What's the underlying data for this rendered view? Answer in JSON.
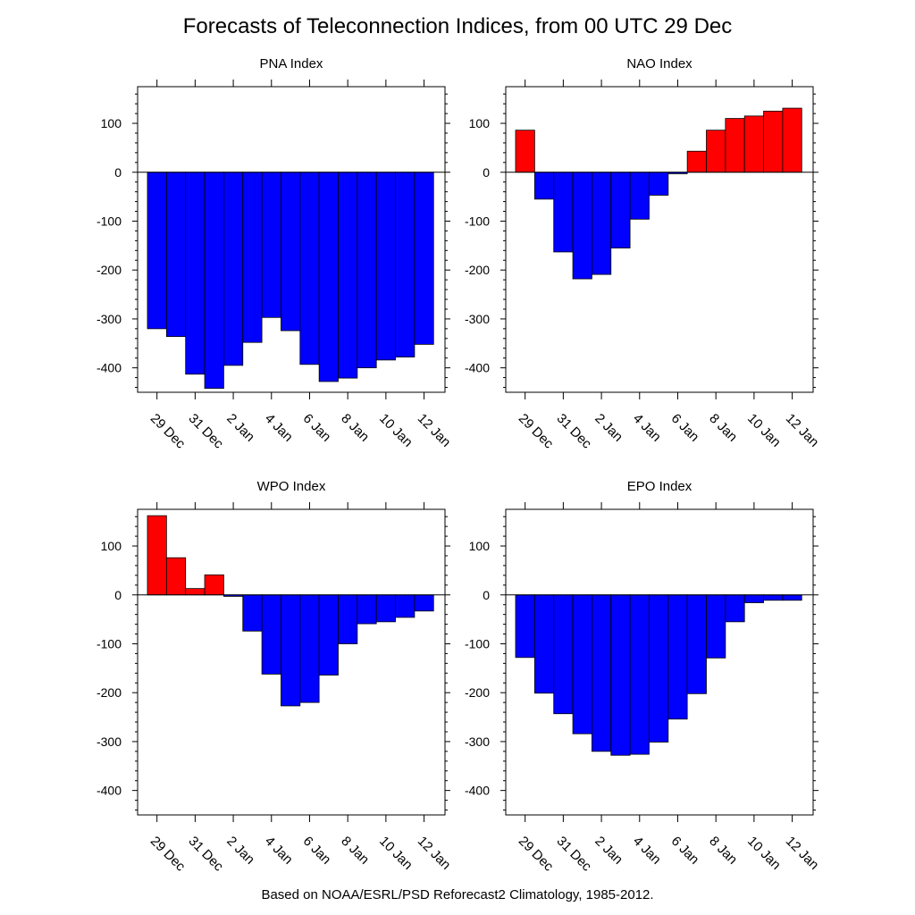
{
  "title": "Forecasts of Teleconnection Indices, from 00 UTC 29 Dec",
  "footer": "Based on NOAA/ESRL/PSD Reforecast2 Climatology, 1985-2012.",
  "colors": {
    "positive": "#ff0000",
    "negative": "#0000ff",
    "outline": "#000000"
  },
  "chart_data": [
    {
      "type": "bar",
      "title": "PNA Index",
      "categories": [
        "29 Dec",
        "30 Dec",
        "31 Dec",
        "1 Jan",
        "2 Jan",
        "3 Jan",
        "4 Jan",
        "5 Jan",
        "6 Jan",
        "7 Jan",
        "8 Jan",
        "9 Jan",
        "10 Jan",
        "11 Jan",
        "12 Jan"
      ],
      "tick_labels": [
        "29 Dec",
        "31 Dec",
        "2 Jan",
        "4 Jan",
        "6 Jan",
        "8 Jan",
        "10 Jan",
        "12 Jan"
      ],
      "values": [
        -320,
        -336,
        -413,
        -442,
        -395,
        -348,
        -297,
        -324,
        -393,
        -428,
        -421,
        -400,
        -384,
        -378,
        -352
      ],
      "ylim": [
        -450,
        175
      ],
      "yticks": [
        100,
        0,
        -100,
        -200,
        -300,
        -400
      ]
    },
    {
      "type": "bar",
      "title": "NAO Index",
      "categories": [
        "29 Dec",
        "30 Dec",
        "31 Dec",
        "1 Jan",
        "2 Jan",
        "3 Jan",
        "4 Jan",
        "5 Jan",
        "6 Jan",
        "7 Jan",
        "8 Jan",
        "9 Jan",
        "10 Jan",
        "11 Jan",
        "12 Jan"
      ],
      "tick_labels": [
        "29 Dec",
        "31 Dec",
        "2 Jan",
        "4 Jan",
        "6 Jan",
        "8 Jan",
        "10 Jan",
        "12 Jan"
      ],
      "values": [
        86,
        -55,
        -163,
        -218,
        -209,
        -155,
        -96,
        -47,
        -3,
        43,
        86,
        110,
        115,
        125,
        131
      ],
      "ylim": [
        -450,
        175
      ],
      "yticks": [
        100,
        0,
        -100,
        -200,
        -300,
        -400
      ]
    },
    {
      "type": "bar",
      "title": "WPO Index",
      "categories": [
        "29 Dec",
        "30 Dec",
        "31 Dec",
        "1 Jan",
        "2 Jan",
        "3 Jan",
        "4 Jan",
        "5 Jan",
        "6 Jan",
        "7 Jan",
        "8 Jan",
        "9 Jan",
        "10 Jan",
        "11 Jan",
        "12 Jan"
      ],
      "tick_labels": [
        "29 Dec",
        "31 Dec",
        "2 Jan",
        "4 Jan",
        "6 Jan",
        "8 Jan",
        "10 Jan",
        "12 Jan"
      ],
      "values": [
        162,
        76,
        13,
        41,
        -3,
        -74,
        -162,
        -227,
        -220,
        -164,
        -100,
        -59,
        -55,
        -46,
        -33
      ],
      "ylim": [
        -450,
        175
      ],
      "yticks": [
        100,
        0,
        -100,
        -200,
        -300,
        -400
      ]
    },
    {
      "type": "bar",
      "title": "EPO Index",
      "categories": [
        "29 Dec",
        "30 Dec",
        "31 Dec",
        "1 Jan",
        "2 Jan",
        "3 Jan",
        "4 Jan",
        "5 Jan",
        "6 Jan",
        "7 Jan",
        "8 Jan",
        "9 Jan",
        "10 Jan",
        "11 Jan",
        "12 Jan"
      ],
      "tick_labels": [
        "29 Dec",
        "31 Dec",
        "2 Jan",
        "4 Jan",
        "6 Jan",
        "8 Jan",
        "10 Jan",
        "12 Jan"
      ],
      "values": [
        -128,
        -201,
        -243,
        -284,
        -320,
        -328,
        -326,
        -301,
        -254,
        -202,
        -129,
        -55,
        -16,
        -11,
        -11
      ],
      "ylim": [
        -450,
        175
      ],
      "yticks": [
        100,
        0,
        -100,
        -200,
        -300,
        -400
      ]
    }
  ]
}
